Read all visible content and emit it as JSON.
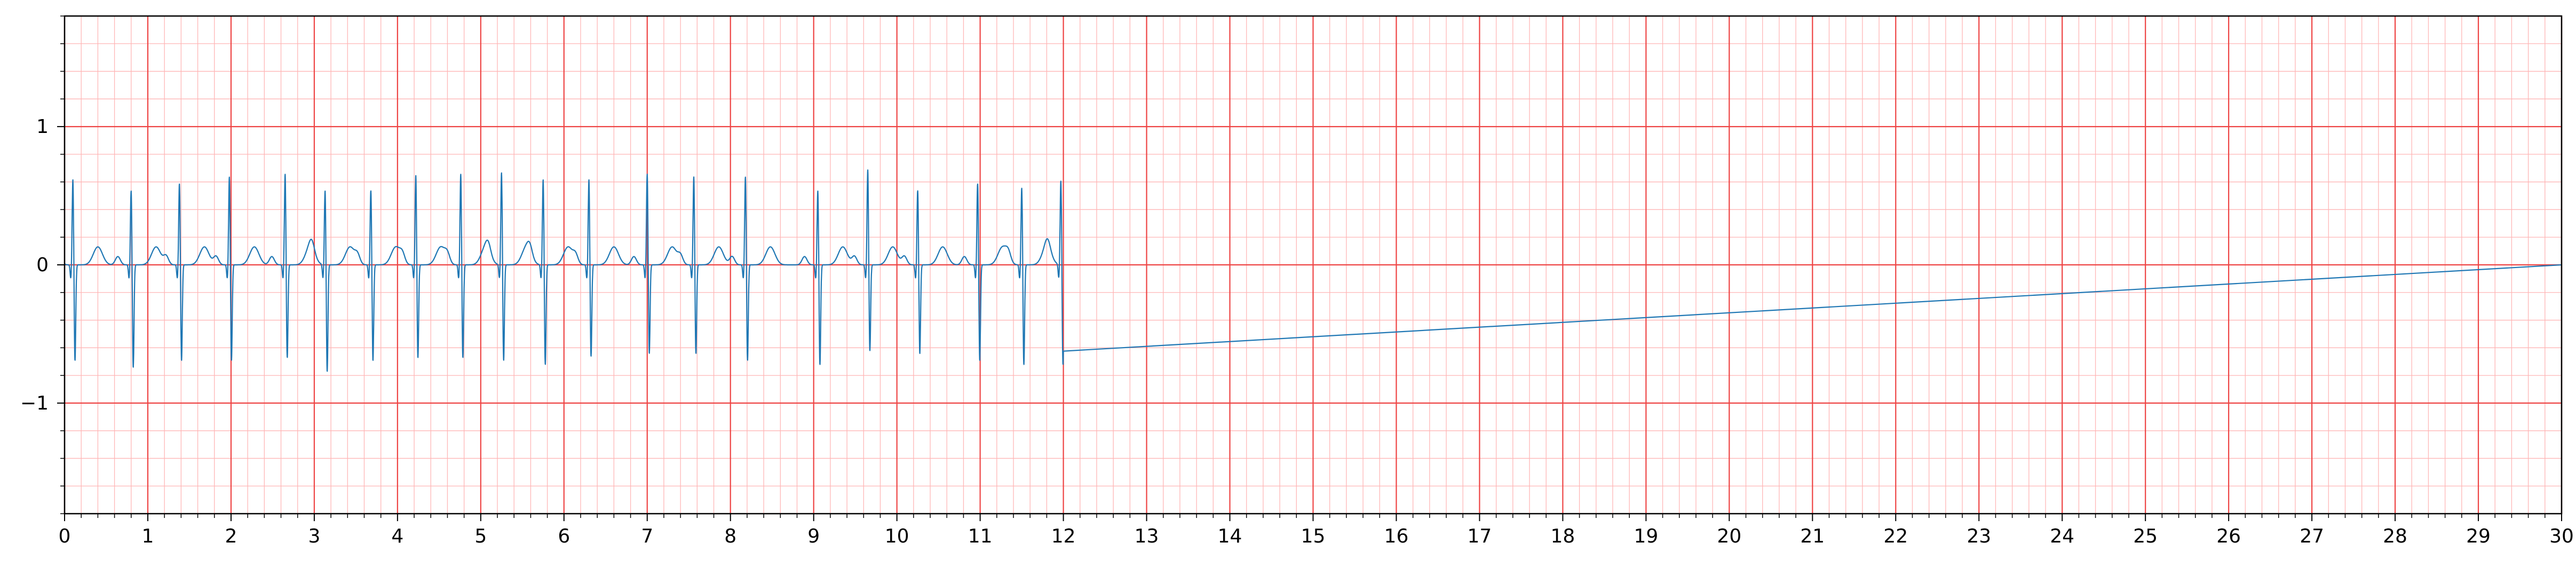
{
  "chart_data": {
    "type": "line",
    "title": "",
    "xlabel": "",
    "ylabel": "",
    "xlim": [
      0,
      30
    ],
    "ylim": [
      -1.8,
      1.8
    ],
    "x_ticks": [
      0,
      1,
      2,
      3,
      4,
      5,
      6,
      7,
      8,
      9,
      10,
      11,
      12,
      13,
      14,
      15,
      16,
      17,
      18,
      19,
      20,
      21,
      22,
      23,
      24,
      25,
      26,
      27,
      28,
      29,
      30
    ],
    "x_tick_labels": [
      "0",
      "1",
      "2",
      "3",
      "4",
      "5",
      "6",
      "7",
      "8",
      "9",
      "10",
      "11",
      "12",
      "13",
      "14",
      "15",
      "16",
      "17",
      "18",
      "19",
      "20",
      "21",
      "22",
      "23",
      "24",
      "25",
      "26",
      "27",
      "28",
      "29",
      "30"
    ],
    "y_ticks": [
      -1,
      0,
      1
    ],
    "y_tick_labels": [
      "−1",
      "0",
      "1"
    ],
    "grid": {
      "major": true,
      "minor": true,
      "major_x_step": 1,
      "major_y_step": 1,
      "minor_x_step": 0.2,
      "minor_y_step": 0.2
    },
    "colors": {
      "major_grid": "#ee4444",
      "minor_grid": "#ffb6b6",
      "trace": "#1f77b4",
      "axes": "#000000"
    },
    "signal_end": 12.0,
    "beats": [
      {
        "t": 0.1,
        "r": 0.63,
        "s": -0.7
      },
      {
        "t": 0.8,
        "r": 0.55,
        "s": -0.75
      },
      {
        "t": 1.38,
        "r": 0.6,
        "s": -0.7
      },
      {
        "t": 1.98,
        "r": 0.65,
        "s": -0.7
      },
      {
        "t": 2.65,
        "r": 0.67,
        "s": -0.68
      },
      {
        "t": 3.13,
        "r": 0.55,
        "s": -0.78
      },
      {
        "t": 3.68,
        "r": 0.55,
        "s": -0.7
      },
      {
        "t": 4.22,
        "r": 0.66,
        "s": -0.68
      },
      {
        "t": 4.76,
        "r": 0.67,
        "s": -0.68
      },
      {
        "t": 5.25,
        "r": 0.68,
        "s": -0.7
      },
      {
        "t": 5.75,
        "r": 0.63,
        "s": -0.73
      },
      {
        "t": 6.3,
        "r": 0.63,
        "s": -0.67
      },
      {
        "t": 7.0,
        "r": 0.67,
        "s": -0.65
      },
      {
        "t": 7.56,
        "r": 0.65,
        "s": -0.65
      },
      {
        "t": 8.18,
        "r": 0.65,
        "s": -0.7
      },
      {
        "t": 9.05,
        "r": 0.55,
        "s": -0.73
      },
      {
        "t": 9.65,
        "r": 0.7,
        "s": -0.63
      },
      {
        "t": 10.25,
        "r": 0.55,
        "s": -0.65
      },
      {
        "t": 10.97,
        "r": 0.6,
        "s": -0.7
      },
      {
        "t": 11.5,
        "r": 0.57,
        "s": -0.73
      },
      {
        "t": 11.97,
        "r": 0.62,
        "s": -0.73
      }
    ]
  }
}
